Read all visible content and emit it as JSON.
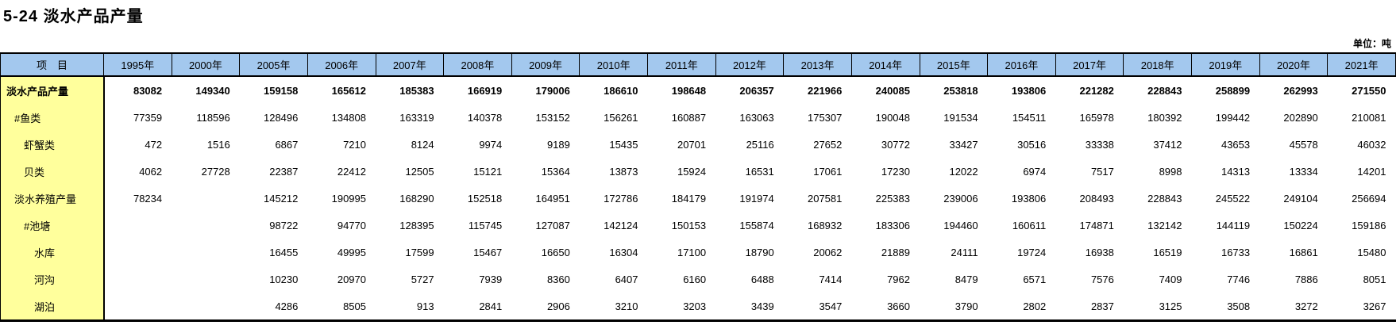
{
  "page_title": "5-24 淡水产品产量",
  "unit_label": "单位：吨",
  "table": {
    "item_header": "项　目",
    "years": [
      "1995年",
      "2000年",
      "2005年",
      "2006年",
      "2007年",
      "2008年",
      "2009年",
      "2010年",
      "2011年",
      "2012年",
      "2013年",
      "2014年",
      "2015年",
      "2016年",
      "2017年",
      "2018年",
      "2019年",
      "2020年",
      "2021年"
    ],
    "rows": [
      {
        "label": "淡水产品产量",
        "indent": 0,
        "bold": true,
        "values": [
          "83082",
          "149340",
          "159158",
          "165612",
          "185383",
          "166919",
          "179006",
          "186610",
          "198648",
          "206357",
          "221966",
          "240085",
          "253818",
          "193806",
          "221282",
          "228843",
          "258899",
          "262993",
          "271550"
        ]
      },
      {
        "label": "#鱼类",
        "indent": 1,
        "bold": false,
        "values": [
          "77359",
          "118596",
          "128496",
          "134808",
          "163319",
          "140378",
          "153152",
          "156261",
          "160887",
          "163063",
          "175307",
          "190048",
          "191534",
          "154511",
          "165978",
          "180392",
          "199442",
          "202890",
          "210081"
        ]
      },
      {
        "label": "虾蟹类",
        "indent": 2,
        "bold": false,
        "values": [
          "472",
          "1516",
          "6867",
          "7210",
          "8124",
          "9974",
          "9189",
          "15435",
          "20701",
          "25116",
          "27652",
          "30772",
          "33427",
          "30516",
          "33338",
          "37412",
          "43653",
          "45578",
          "46032"
        ]
      },
      {
        "label": "贝类",
        "indent": 2,
        "bold": false,
        "values": [
          "4062",
          "27728",
          "22387",
          "22412",
          "12505",
          "15121",
          "15364",
          "13873",
          "15924",
          "16531",
          "17061",
          "17230",
          "12022",
          "6974",
          "7517",
          "8998",
          "14313",
          "13334",
          "14201"
        ]
      },
      {
        "label": "淡水养殖产量",
        "indent": 1,
        "bold": false,
        "values": [
          "78234",
          "",
          "145212",
          "190995",
          "168290",
          "152518",
          "164951",
          "172786",
          "184179",
          "191974",
          "207581",
          "225383",
          "239006",
          "193806",
          "208493",
          "228843",
          "245522",
          "249104",
          "256694"
        ]
      },
      {
        "label": "#池塘",
        "indent": 2,
        "bold": false,
        "values": [
          "",
          "",
          "98722",
          "94770",
          "128395",
          "115745",
          "127087",
          "142124",
          "150153",
          "155874",
          "168932",
          "183306",
          "194460",
          "160611",
          "174871",
          "132142",
          "144119",
          "150224",
          "159186"
        ]
      },
      {
        "label": "水库",
        "indent": 3,
        "bold": false,
        "values": [
          "",
          "",
          "16455",
          "49995",
          "17599",
          "15467",
          "16650",
          "16304",
          "17100",
          "18790",
          "20062",
          "21889",
          "24111",
          "19724",
          "16938",
          "16519",
          "16733",
          "16861",
          "15480"
        ]
      },
      {
        "label": "河沟",
        "indent": 3,
        "bold": false,
        "values": [
          "",
          "",
          "10230",
          "20970",
          "5727",
          "7939",
          "8360",
          "6407",
          "6160",
          "6488",
          "7414",
          "7962",
          "8479",
          "6571",
          "7576",
          "7409",
          "7746",
          "7886",
          "8051"
        ]
      },
      {
        "label": "湖泊",
        "indent": 3,
        "bold": false,
        "values": [
          "",
          "",
          "4286",
          "8505",
          "913",
          "2841",
          "2906",
          "3210",
          "3203",
          "3439",
          "3547",
          "3660",
          "3790",
          "2802",
          "2837",
          "3125",
          "3508",
          "3272",
          "3267"
        ]
      }
    ]
  },
  "chart_data": {
    "type": "table",
    "title": "5-24 淡水产品产量",
    "unit": "吨",
    "columns": [
      "项目",
      "1995年",
      "2000年",
      "2005年",
      "2006年",
      "2007年",
      "2008年",
      "2009年",
      "2010年",
      "2011年",
      "2012年",
      "2013年",
      "2014年",
      "2015年",
      "2016年",
      "2017年",
      "2018年",
      "2019年",
      "2020年",
      "2021年"
    ],
    "rows": [
      [
        "淡水产品产量",
        83082,
        149340,
        159158,
        165612,
        185383,
        166919,
        179006,
        186610,
        198648,
        206357,
        221966,
        240085,
        253818,
        193806,
        221282,
        228843,
        258899,
        262993,
        271550
      ],
      [
        "#鱼类",
        77359,
        118596,
        128496,
        134808,
        163319,
        140378,
        153152,
        156261,
        160887,
        163063,
        175307,
        190048,
        191534,
        154511,
        165978,
        180392,
        199442,
        202890,
        210081
      ],
      [
        "虾蟹类",
        472,
        1516,
        6867,
        7210,
        8124,
        9974,
        9189,
        15435,
        20701,
        25116,
        27652,
        30772,
        33427,
        30516,
        33338,
        37412,
        43653,
        45578,
        46032
      ],
      [
        "贝类",
        4062,
        27728,
        22387,
        22412,
        12505,
        15121,
        15364,
        13873,
        15924,
        16531,
        17061,
        17230,
        12022,
        6974,
        7517,
        8998,
        14313,
        13334,
        14201
      ],
      [
        "淡水养殖产量",
        78234,
        null,
        145212,
        190995,
        168290,
        152518,
        164951,
        172786,
        184179,
        191974,
        207581,
        225383,
        239006,
        193806,
        208493,
        228843,
        245522,
        249104,
        256694
      ],
      [
        "#池塘",
        null,
        null,
        98722,
        94770,
        128395,
        115745,
        127087,
        142124,
        150153,
        155874,
        168932,
        183306,
        194460,
        160611,
        174871,
        132142,
        144119,
        150224,
        159186
      ],
      [
        "水库",
        null,
        null,
        16455,
        49995,
        17599,
        15467,
        16650,
        16304,
        17100,
        18790,
        20062,
        21889,
        24111,
        19724,
        16938,
        16519,
        16733,
        16861,
        15480
      ],
      [
        "河沟",
        null,
        null,
        10230,
        20970,
        5727,
        7939,
        8360,
        6407,
        6160,
        6488,
        7414,
        7962,
        8479,
        6571,
        7576,
        7409,
        7746,
        7886,
        8051
      ],
      [
        "湖泊",
        null,
        null,
        4286,
        8505,
        913,
        2841,
        2906,
        3210,
        3203,
        3439,
        3547,
        3660,
        3790,
        2802,
        2837,
        3125,
        3508,
        3272,
        3267
      ]
    ],
    "colors": {
      "header_bg": "#a3c8ee",
      "label_col_bg": "#ffff9c",
      "border": "#000000"
    }
  }
}
